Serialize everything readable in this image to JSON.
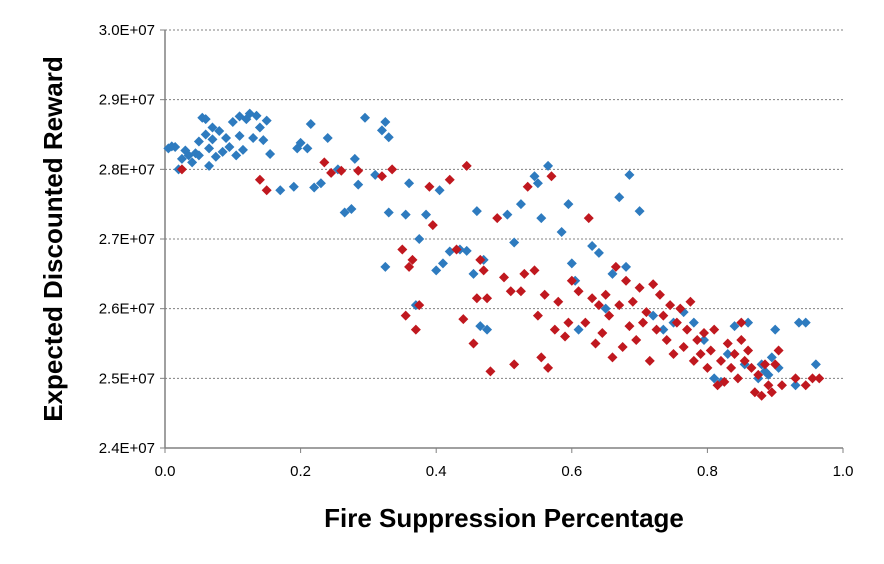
{
  "chart_data": {
    "type": "scatter",
    "title": "",
    "xlabel": "Fire Suppression Percentage",
    "ylabel": "Expected Discounted Reward",
    "xlim": [
      0.0,
      1.0
    ],
    "ylim": [
      24000000,
      30000000
    ],
    "x_ticks": [
      "0.0",
      "0.2",
      "0.4",
      "0.6",
      "0.8",
      "1.0"
    ],
    "y_ticks": [
      "2.4E+07",
      "2.5E+07",
      "2.6E+07",
      "2.7E+07",
      "2.8E+07",
      "2.9E+07",
      "3.0E+07"
    ],
    "grid": "horizontal dotted",
    "legend": "none",
    "marker": "diamond",
    "series": [
      {
        "color": "#2e7bbf",
        "points": [
          [
            0.005,
            28300000
          ],
          [
            0.01,
            28330000
          ],
          [
            0.015,
            28320000
          ],
          [
            0.02,
            28000000
          ],
          [
            0.025,
            28150000
          ],
          [
            0.03,
            28270000
          ],
          [
            0.035,
            28200000
          ],
          [
            0.04,
            28100000
          ],
          [
            0.045,
            28230000
          ],
          [
            0.05,
            28400000
          ],
          [
            0.05,
            28200000
          ],
          [
            0.055,
            28740000
          ],
          [
            0.06,
            28720000
          ],
          [
            0.06,
            28500000
          ],
          [
            0.065,
            28300000
          ],
          [
            0.065,
            28050000
          ],
          [
            0.07,
            28600000
          ],
          [
            0.07,
            28430000
          ],
          [
            0.075,
            28180000
          ],
          [
            0.08,
            28550000
          ],
          [
            0.085,
            28250000
          ],
          [
            0.09,
            28450000
          ],
          [
            0.095,
            28320000
          ],
          [
            0.1,
            28680000
          ],
          [
            0.105,
            28200000
          ],
          [
            0.11,
            28760000
          ],
          [
            0.11,
            28480000
          ],
          [
            0.115,
            28280000
          ],
          [
            0.12,
            28720000
          ],
          [
            0.125,
            28800000
          ],
          [
            0.13,
            28450000
          ],
          [
            0.135,
            28770000
          ],
          [
            0.14,
            28600000
          ],
          [
            0.145,
            28420000
          ],
          [
            0.15,
            28700000
          ],
          [
            0.155,
            28220000
          ],
          [
            0.17,
            27700000
          ],
          [
            0.19,
            27750000
          ],
          [
            0.195,
            28300000
          ],
          [
            0.2,
            28380000
          ],
          [
            0.21,
            28300000
          ],
          [
            0.215,
            28650000
          ],
          [
            0.22,
            27740000
          ],
          [
            0.23,
            27800000
          ],
          [
            0.24,
            28450000
          ],
          [
            0.255,
            28000000
          ],
          [
            0.265,
            27380000
          ],
          [
            0.275,
            27430000
          ],
          [
            0.28,
            28150000
          ],
          [
            0.285,
            27780000
          ],
          [
            0.295,
            28740000
          ],
          [
            0.31,
            27920000
          ],
          [
            0.32,
            28560000
          ],
          [
            0.325,
            28680000
          ],
          [
            0.325,
            26600000
          ],
          [
            0.33,
            27380000
          ],
          [
            0.33,
            28460000
          ],
          [
            0.355,
            27350000
          ],
          [
            0.36,
            27800000
          ],
          [
            0.37,
            26050000
          ],
          [
            0.375,
            27000000
          ],
          [
            0.385,
            27350000
          ],
          [
            0.4,
            26550000
          ],
          [
            0.405,
            27700000
          ],
          [
            0.41,
            26650000
          ],
          [
            0.42,
            26820000
          ],
          [
            0.435,
            26850000
          ],
          [
            0.445,
            26830000
          ],
          [
            0.455,
            26500000
          ],
          [
            0.46,
            27400000
          ],
          [
            0.465,
            25750000
          ],
          [
            0.47,
            26700000
          ],
          [
            0.475,
            25700000
          ],
          [
            0.505,
            27350000
          ],
          [
            0.515,
            26950000
          ],
          [
            0.525,
            27500000
          ],
          [
            0.545,
            27900000
          ],
          [
            0.55,
            27800000
          ],
          [
            0.555,
            27300000
          ],
          [
            0.565,
            28050000
          ],
          [
            0.585,
            27100000
          ],
          [
            0.595,
            27500000
          ],
          [
            0.6,
            26650000
          ],
          [
            0.605,
            26400000
          ],
          [
            0.61,
            25700000
          ],
          [
            0.63,
            26900000
          ],
          [
            0.64,
            26800000
          ],
          [
            0.65,
            26000000
          ],
          [
            0.66,
            26500000
          ],
          [
            0.67,
            27600000
          ],
          [
            0.68,
            26600000
          ],
          [
            0.685,
            27920000
          ],
          [
            0.7,
            27400000
          ],
          [
            0.72,
            25900000
          ],
          [
            0.735,
            25700000
          ],
          [
            0.75,
            25800000
          ],
          [
            0.765,
            25950000
          ],
          [
            0.78,
            25800000
          ],
          [
            0.795,
            25550000
          ],
          [
            0.81,
            25000000
          ],
          [
            0.82,
            24950000
          ],
          [
            0.83,
            25350000
          ],
          [
            0.84,
            25750000
          ],
          [
            0.855,
            25200000
          ],
          [
            0.86,
            25800000
          ],
          [
            0.875,
            25000000
          ],
          [
            0.88,
            25200000
          ],
          [
            0.885,
            25100000
          ],
          [
            0.89,
            25050000
          ],
          [
            0.895,
            25300000
          ],
          [
            0.9,
            25700000
          ],
          [
            0.905,
            25150000
          ],
          [
            0.93,
            24900000
          ],
          [
            0.935,
            25800000
          ],
          [
            0.945,
            25800000
          ],
          [
            0.96,
            25200000
          ]
        ]
      },
      {
        "color": "#c0181f",
        "points": [
          [
            0.025,
            28000000
          ],
          [
            0.14,
            27850000
          ],
          [
            0.15,
            27700000
          ],
          [
            0.235,
            28100000
          ],
          [
            0.245,
            27950000
          ],
          [
            0.26,
            27980000
          ],
          [
            0.285,
            27980000
          ],
          [
            0.32,
            27900000
          ],
          [
            0.335,
            28000000
          ],
          [
            0.35,
            26850000
          ],
          [
            0.355,
            25900000
          ],
          [
            0.36,
            26600000
          ],
          [
            0.365,
            26700000
          ],
          [
            0.37,
            25700000
          ],
          [
            0.375,
            26050000
          ],
          [
            0.39,
            27750000
          ],
          [
            0.395,
            27200000
          ],
          [
            0.42,
            27850000
          ],
          [
            0.43,
            26850000
          ],
          [
            0.44,
            25850000
          ],
          [
            0.445,
            28050000
          ],
          [
            0.455,
            25500000
          ],
          [
            0.46,
            26150000
          ],
          [
            0.465,
            26700000
          ],
          [
            0.47,
            26550000
          ],
          [
            0.475,
            26150000
          ],
          [
            0.48,
            25100000
          ],
          [
            0.49,
            27300000
          ],
          [
            0.5,
            26450000
          ],
          [
            0.51,
            26250000
          ],
          [
            0.515,
            25200000
          ],
          [
            0.525,
            26250000
          ],
          [
            0.53,
            26500000
          ],
          [
            0.535,
            27750000
          ],
          [
            0.545,
            26550000
          ],
          [
            0.55,
            25900000
          ],
          [
            0.555,
            25300000
          ],
          [
            0.56,
            26200000
          ],
          [
            0.565,
            25150000
          ],
          [
            0.57,
            27900000
          ],
          [
            0.575,
            25700000
          ],
          [
            0.58,
            26100000
          ],
          [
            0.59,
            25600000
          ],
          [
            0.595,
            25800000
          ],
          [
            0.6,
            26400000
          ],
          [
            0.61,
            26250000
          ],
          [
            0.62,
            25800000
          ],
          [
            0.625,
            27300000
          ],
          [
            0.63,
            26150000
          ],
          [
            0.635,
            25500000
          ],
          [
            0.64,
            26050000
          ],
          [
            0.645,
            25650000
          ],
          [
            0.65,
            26200000
          ],
          [
            0.655,
            25900000
          ],
          [
            0.66,
            25300000
          ],
          [
            0.665,
            26600000
          ],
          [
            0.67,
            26050000
          ],
          [
            0.675,
            25450000
          ],
          [
            0.68,
            26400000
          ],
          [
            0.685,
            25750000
          ],
          [
            0.69,
            26100000
          ],
          [
            0.695,
            25550000
          ],
          [
            0.7,
            26300000
          ],
          [
            0.705,
            25800000
          ],
          [
            0.71,
            25950000
          ],
          [
            0.715,
            25250000
          ],
          [
            0.72,
            26350000
          ],
          [
            0.725,
            25700000
          ],
          [
            0.73,
            26200000
          ],
          [
            0.735,
            25900000
          ],
          [
            0.74,
            25550000
          ],
          [
            0.745,
            26050000
          ],
          [
            0.75,
            25350000
          ],
          [
            0.755,
            25800000
          ],
          [
            0.76,
            26000000
          ],
          [
            0.765,
            25450000
          ],
          [
            0.77,
            25700000
          ],
          [
            0.775,
            26100000
          ],
          [
            0.78,
            25250000
          ],
          [
            0.785,
            25550000
          ],
          [
            0.79,
            25350000
          ],
          [
            0.795,
            25650000
          ],
          [
            0.8,
            25150000
          ],
          [
            0.805,
            25400000
          ],
          [
            0.81,
            25700000
          ],
          [
            0.815,
            24900000
          ],
          [
            0.82,
            25250000
          ],
          [
            0.825,
            24950000
          ],
          [
            0.83,
            25500000
          ],
          [
            0.835,
            25150000
          ],
          [
            0.84,
            25350000
          ],
          [
            0.845,
            25000000
          ],
          [
            0.85,
            25550000
          ],
          [
            0.855,
            25250000
          ],
          [
            0.86,
            25400000
          ],
          [
            0.865,
            25150000
          ],
          [
            0.87,
            24800000
          ],
          [
            0.875,
            25050000
          ],
          [
            0.88,
            24750000
          ],
          [
            0.885,
            25200000
          ],
          [
            0.89,
            24900000
          ],
          [
            0.895,
            24800000
          ],
          [
            0.9,
            25200000
          ],
          [
            0.905,
            25400000
          ],
          [
            0.91,
            24900000
          ],
          [
            0.93,
            25000000
          ],
          [
            0.945,
            24900000
          ],
          [
            0.955,
            25000000
          ],
          [
            0.965,
            25000000
          ],
          [
            0.85,
            25800000
          ]
        ]
      }
    ]
  }
}
